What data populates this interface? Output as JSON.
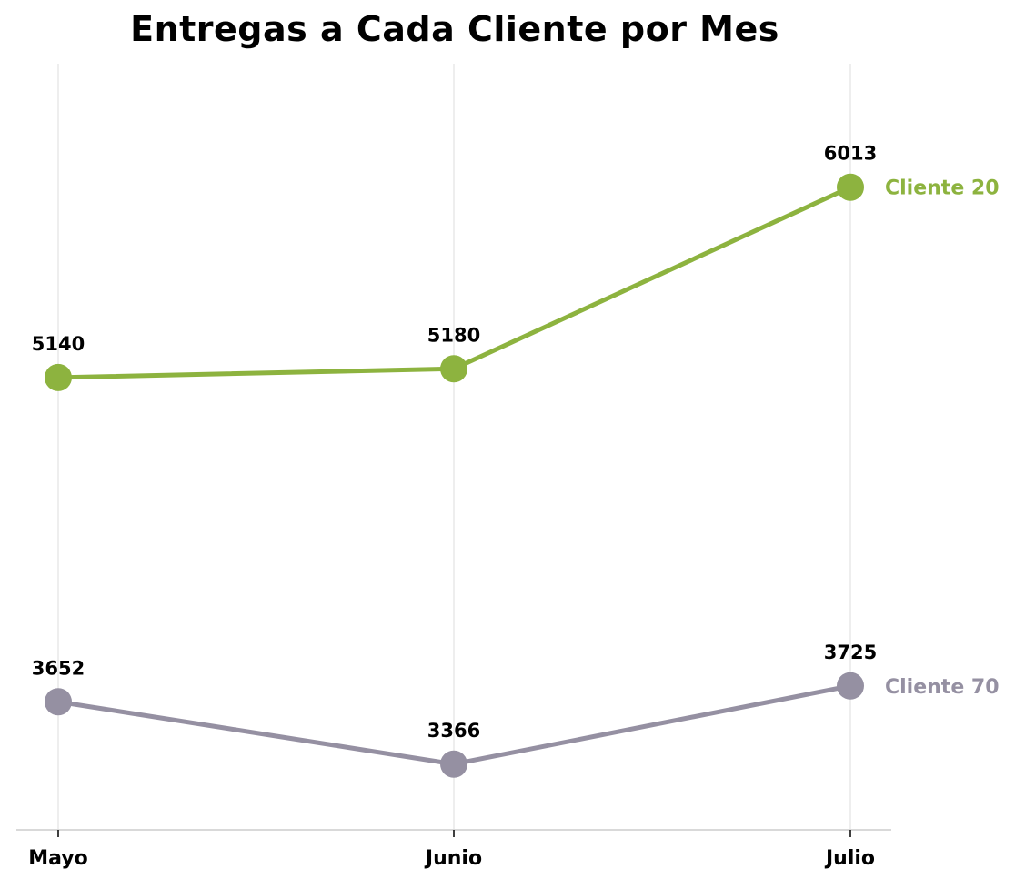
{
  "chart_data": {
    "type": "line",
    "title": "Entregas a Cada Cliente por Mes",
    "xlabel": "",
    "ylabel": "",
    "categories": [
      "Mayo",
      "Junio",
      "Julio"
    ],
    "series": [
      {
        "name": "Cliente 20",
        "values": [
          5140,
          5180,
          6013
        ],
        "color": "#8db33f"
      },
      {
        "name": "Cliente 70",
        "values": [
          3652,
          3366,
          3725
        ],
        "color": "#9590a2"
      }
    ],
    "ylim": [
      2530,
      6705
    ],
    "grid": "vertical",
    "legend": "inline-right",
    "axis_color": "#d9d9d9"
  }
}
